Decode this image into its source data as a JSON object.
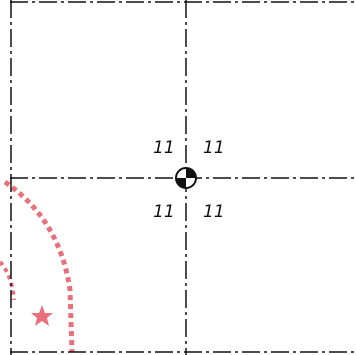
{
  "drawing": {
    "dimensions": {
      "top_left": "11",
      "top_right": "11",
      "bottom_left": "11",
      "bottom_right": "11"
    },
    "symbols": {
      "center_mark": "center-of-gravity-icon",
      "marker": "star-icon"
    },
    "colors": {
      "line": "#111111",
      "highlight": "#e8707a",
      "background": "#ffffff"
    }
  }
}
